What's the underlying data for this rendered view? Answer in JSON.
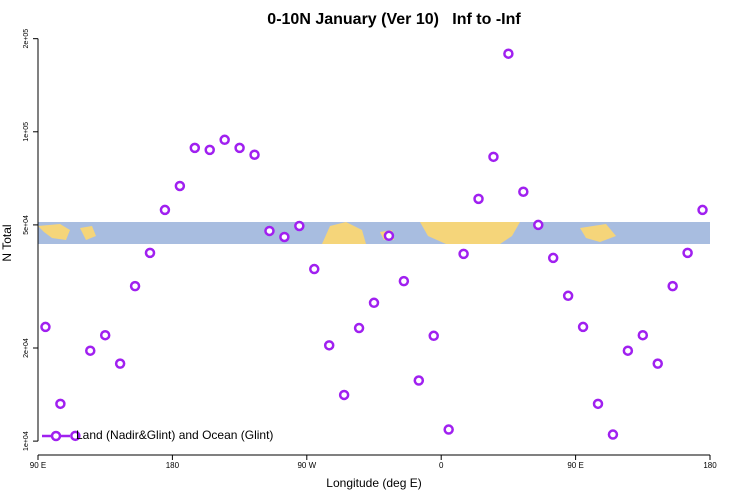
{
  "chart_data": {
    "type": "scatter",
    "title": "0-10N January (Ver 10)   Inf to -Inf",
    "x_label": "Longitude (deg E)",
    "y_label": "N Total",
    "log_y": true,
    "legend_position": "bottom-left",
    "xlim": [
      90,
      540
    ],
    "xticks": [
      {
        "value": 90,
        "label": "90 E"
      },
      {
        "value": 180,
        "label": "180"
      },
      {
        "value": 270,
        "label": "90 W"
      },
      {
        "value": 360,
        "label": "0"
      },
      {
        "value": 450,
        "label": "90 E"
      },
      {
        "value": 540,
        "label": "180"
      }
    ],
    "ylim": [
      9500,
      201000
    ],
    "yticks": [
      {
        "value": 10000,
        "label": "1e+04"
      },
      {
        "value": 20000,
        "label": "2e+04"
      },
      {
        "value": 50000,
        "label": "5e+04"
      },
      {
        "value": 100000,
        "label": "1e+05"
      },
      {
        "value": 200000,
        "label": "2e+05"
      }
    ],
    "series": [
      {
        "name": "Land (Nadir&Glint) and Ocean (Glint)",
        "color": "#a020f0",
        "x": [
          95,
          105,
          115,
          125,
          135,
          145,
          155,
          165,
          175,
          185,
          195,
          205,
          215,
          225,
          235,
          245,
          255,
          265,
          275,
          285,
          295,
          305,
          315,
          325,
          335,
          345,
          355,
          365,
          375,
          385,
          395,
          405,
          415,
          425,
          435,
          445,
          455,
          465,
          475,
          485,
          495,
          505,
          515,
          525,
          535
        ],
        "values": [
          23400,
          13200,
          10400,
          19600,
          22000,
          17800,
          31700,
          40600,
          55900,
          66800,
          88700,
          87400,
          94200,
          88700,
          84300,
          47800,
          45700,
          49600,
          36000,
          20400,
          14100,
          23200,
          28000,
          46100,
          32900,
          15700,
          21900,
          10900,
          40300,
          60700,
          83000,
          178800,
          64000,
          50000,
          39100,
          29500,
          23400,
          13200,
          10500,
          19600,
          22000,
          17800,
          31700,
          40600,
          55900
        ]
      }
    ]
  }
}
